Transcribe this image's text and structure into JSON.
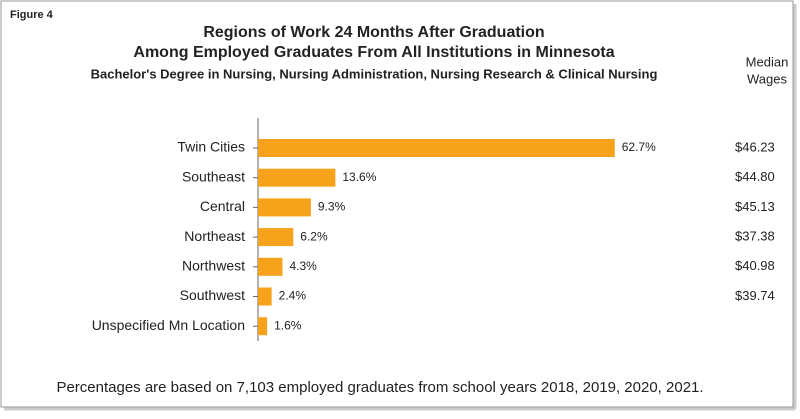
{
  "figure_label": "Figure 4",
  "chart_data": {
    "type": "bar",
    "orientation": "horizontal",
    "title": [
      "Regions of Work 24 Months After Graduation",
      "Among Employed Graduates From All Institutions in Minnesota"
    ],
    "subtitle": "Bachelor's Degree in Nursing, Nursing Administration, Nursing Research & Clinical Nursing",
    "categories": [
      "Twin Cities",
      "Southeast",
      "Central",
      "Northeast",
      "Northwest",
      "Southwest",
      "Unspecified Mn Location"
    ],
    "values": [
      62.7,
      13.6,
      9.3,
      6.2,
      4.3,
      2.4,
      1.6
    ],
    "value_labels": [
      "62.7%",
      "13.6%",
      "9.3%",
      "6.2%",
      "4.3%",
      "2.4%",
      "1.6%"
    ],
    "color": "#f7a21b",
    "median_wages_header": [
      "Median",
      "Wages"
    ],
    "median_wages": [
      "$46.23",
      "$44.80",
      "$45.13",
      "$37.38",
      "$40.98",
      "$39.74",
      null
    ],
    "note": "Percentages are based on 7,103 employed graduates from school years 2018, 2019, 2020, 2021."
  }
}
